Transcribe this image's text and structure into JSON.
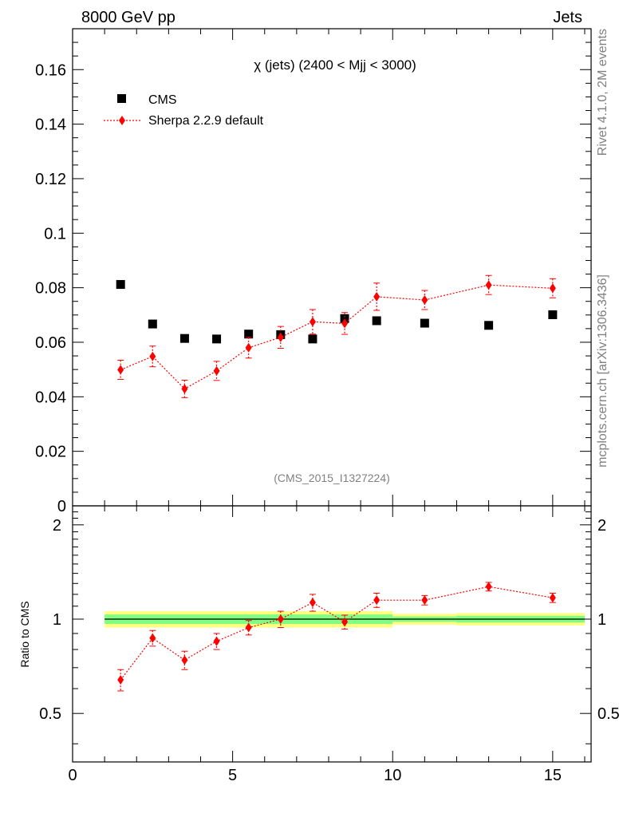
{
  "header": {
    "left": "8000 GeV pp",
    "right": "Jets"
  },
  "side_labels": {
    "rivet": "Rivet 4.1.0,  2M events",
    "mcplots": "mcplots.cern.ch [arXiv:1306.3436]"
  },
  "colors": {
    "cms": "#000000",
    "sherpa": "#ff0000",
    "band_yellow": "#ffff80",
    "band_green": "#80ff80",
    "watermark": "#808080"
  },
  "chart_data": [
    {
      "type": "scatter",
      "title": "χ (jets) (2400 < Mjj < 3000)",
      "watermark": "(CMS_2015_I1327224)",
      "xlim": [
        0,
        16.2
      ],
      "ylim": [
        0,
        0.175
      ],
      "yticks": [
        0,
        0.02,
        0.04,
        0.06,
        0.08,
        0.1,
        0.12,
        0.14,
        0.16
      ],
      "ytick_labels": [
        "0",
        "0.02",
        "0.04",
        "0.06",
        "0.08",
        "0.1",
        "0.12",
        "0.14",
        "0.16"
      ],
      "legend": [
        "CMS",
        "Sherpa 2.2.9 default"
      ],
      "legend_position": "top-left",
      "series": [
        {
          "name": "CMS",
          "marker": "square",
          "x": [
            1.5,
            2.5,
            3.5,
            4.5,
            5.5,
            6.5,
            7.5,
            8.5,
            9.5,
            11,
            13,
            15
          ],
          "y": [
            0.0812,
            0.0667,
            0.0614,
            0.0612,
            0.063,
            0.0628,
            0.0612,
            0.0687,
            0.0679,
            0.067,
            0.0662,
            0.0701
          ]
        },
        {
          "name": "Sherpa 2.2.9 default",
          "marker": "diamond",
          "line": "dotted",
          "x": [
            1.5,
            2.5,
            3.5,
            4.5,
            5.5,
            6.5,
            7.5,
            8.5,
            9.5,
            11,
            13,
            15
          ],
          "y": [
            0.0499,
            0.0548,
            0.0429,
            0.0495,
            0.058,
            0.0618,
            0.0675,
            0.0669,
            0.0767,
            0.0755,
            0.081,
            0.0798
          ],
          "yerr": [
            0.0035,
            0.0038,
            0.0032,
            0.0035,
            0.0038,
            0.004,
            0.0045,
            0.004,
            0.005,
            0.0035,
            0.0035,
            0.0035
          ]
        }
      ]
    },
    {
      "type": "scatter",
      "ylabel": "Ratio to CMS",
      "xlim": [
        0,
        16.2
      ],
      "ylim": [
        0.35,
        2.3
      ],
      "xticks": [
        0,
        5,
        10,
        15
      ],
      "xtick_labels": [
        "0",
        "5",
        "10",
        "15"
      ],
      "yticks": [
        0.5,
        1,
        2
      ],
      "ytick_labels": [
        "0.5",
        "1",
        "2"
      ],
      "bands": [
        {
          "x0": 1,
          "x1": 10,
          "yellow": [
            0.94,
            1.06
          ],
          "green": [
            0.965,
            1.035
          ]
        },
        {
          "x0": 10,
          "x1": 12,
          "yellow": [
            0.96,
            1.04
          ],
          "green": [
            0.98,
            1.02
          ]
        },
        {
          "x0": 12,
          "x1": 16,
          "yellow": [
            0.955,
            1.045
          ],
          "green": [
            0.975,
            1.025
          ]
        }
      ],
      "series": [
        {
          "name": "Sherpa 2.2.9 default / CMS",
          "marker": "diamond",
          "line": "dotted",
          "x": [
            1.5,
            2.5,
            3.5,
            4.5,
            5.5,
            6.5,
            7.5,
            8.5,
            9.5,
            11,
            13,
            15
          ],
          "y": [
            0.64,
            0.87,
            0.74,
            0.85,
            0.94,
            1.0,
            1.13,
            0.98,
            1.15,
            1.15,
            1.27,
            1.17
          ],
          "yerr": [
            0.05,
            0.05,
            0.05,
            0.05,
            0.05,
            0.06,
            0.07,
            0.05,
            0.06,
            0.04,
            0.04,
            0.04
          ]
        }
      ]
    }
  ]
}
